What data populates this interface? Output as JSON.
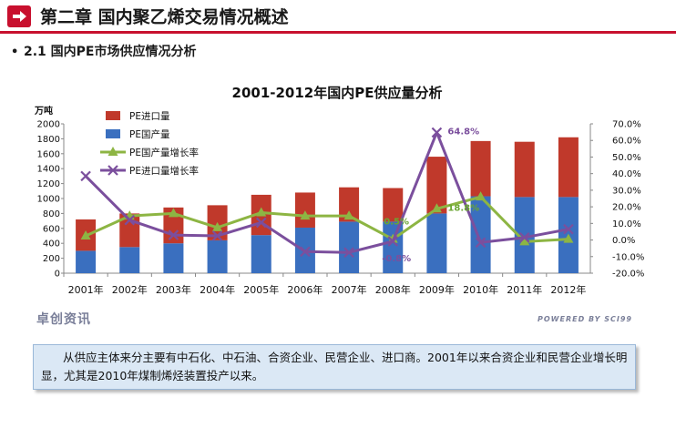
{
  "header": {
    "title": "第二章  国内聚乙烯交易情况概述",
    "icon": "arrow-right-icon"
  },
  "section": {
    "bullet": "•",
    "title": "2.1 国内PE市场供应情况分析"
  },
  "colors": {
    "accent": "#c8102e",
    "import_bar": "#c0392b",
    "domestic_bar": "#3a6fbf",
    "domestic_growth_line": "#8db543",
    "import_growth_line": "#7b4f9d"
  },
  "chart_data": {
    "type": "bar",
    "title": "2001-2012年国内PE供应量分析",
    "ylabel": "万吨",
    "ylim": [
      0,
      2000
    ],
    "y_ticks": [
      "0",
      "200",
      "400",
      "600",
      "800",
      "1000",
      "1200",
      "1400",
      "1600",
      "1800",
      "2000"
    ],
    "y2lim": [
      -20,
      70
    ],
    "y2_ticks": [
      "-20.0%",
      "-10.0%",
      "0.0%",
      "10.0%",
      "20.0%",
      "30.0%",
      "40.0%",
      "50.0%",
      "60.0%",
      "70.0%"
    ],
    "categories": [
      "2001年",
      "2002年",
      "2003年",
      "2004年",
      "2005年",
      "2006年",
      "2007年",
      "2008年",
      "2009年",
      "2010年",
      "2011年",
      "2012年"
    ],
    "stacked": true,
    "series": [
      {
        "name": "PE进口量",
        "kind": "bar",
        "axis": "left",
        "values": [
          420,
          450,
          480,
          470,
          540,
          470,
          460,
          450,
          760,
          740,
          740,
          800
        ]
      },
      {
        "name": "PE国产量",
        "kind": "bar",
        "axis": "left",
        "values": [
          300,
          350,
          400,
          440,
          510,
          610,
          690,
          690,
          800,
          1030,
          1020,
          1020
        ]
      },
      {
        "name": "PE国产量增长率",
        "kind": "line",
        "axis": "right",
        "values": [
          2.5,
          14.5,
          16.0,
          7.5,
          16.5,
          14.5,
          14.5,
          0.5,
          18.8,
          26.0,
          -1.0,
          0.5
        ]
      },
      {
        "name": "PE进口量增长率",
        "kind": "line",
        "axis": "right",
        "values": [
          38.5,
          12.0,
          3.0,
          2.5,
          10.5,
          -7.0,
          -7.5,
          -0.8,
          64.8,
          -1.5,
          1.5,
          6.5
        ]
      }
    ],
    "annotations": [
      "0.5%",
      "18.8%",
      "-0.8%",
      "64.8%"
    ],
    "legend_position": "top-left"
  },
  "footer": {
    "logo": "卓创资讯",
    "powered": "POWERED BY SCI99"
  },
  "summary": {
    "text": "从供应主体来分主要有中石化、中石油、合资企业、民营企业、进口商。2001年以来合资企业和民营企业增长明显，尤其是2010年煤制烯烃装置投产以来。"
  }
}
